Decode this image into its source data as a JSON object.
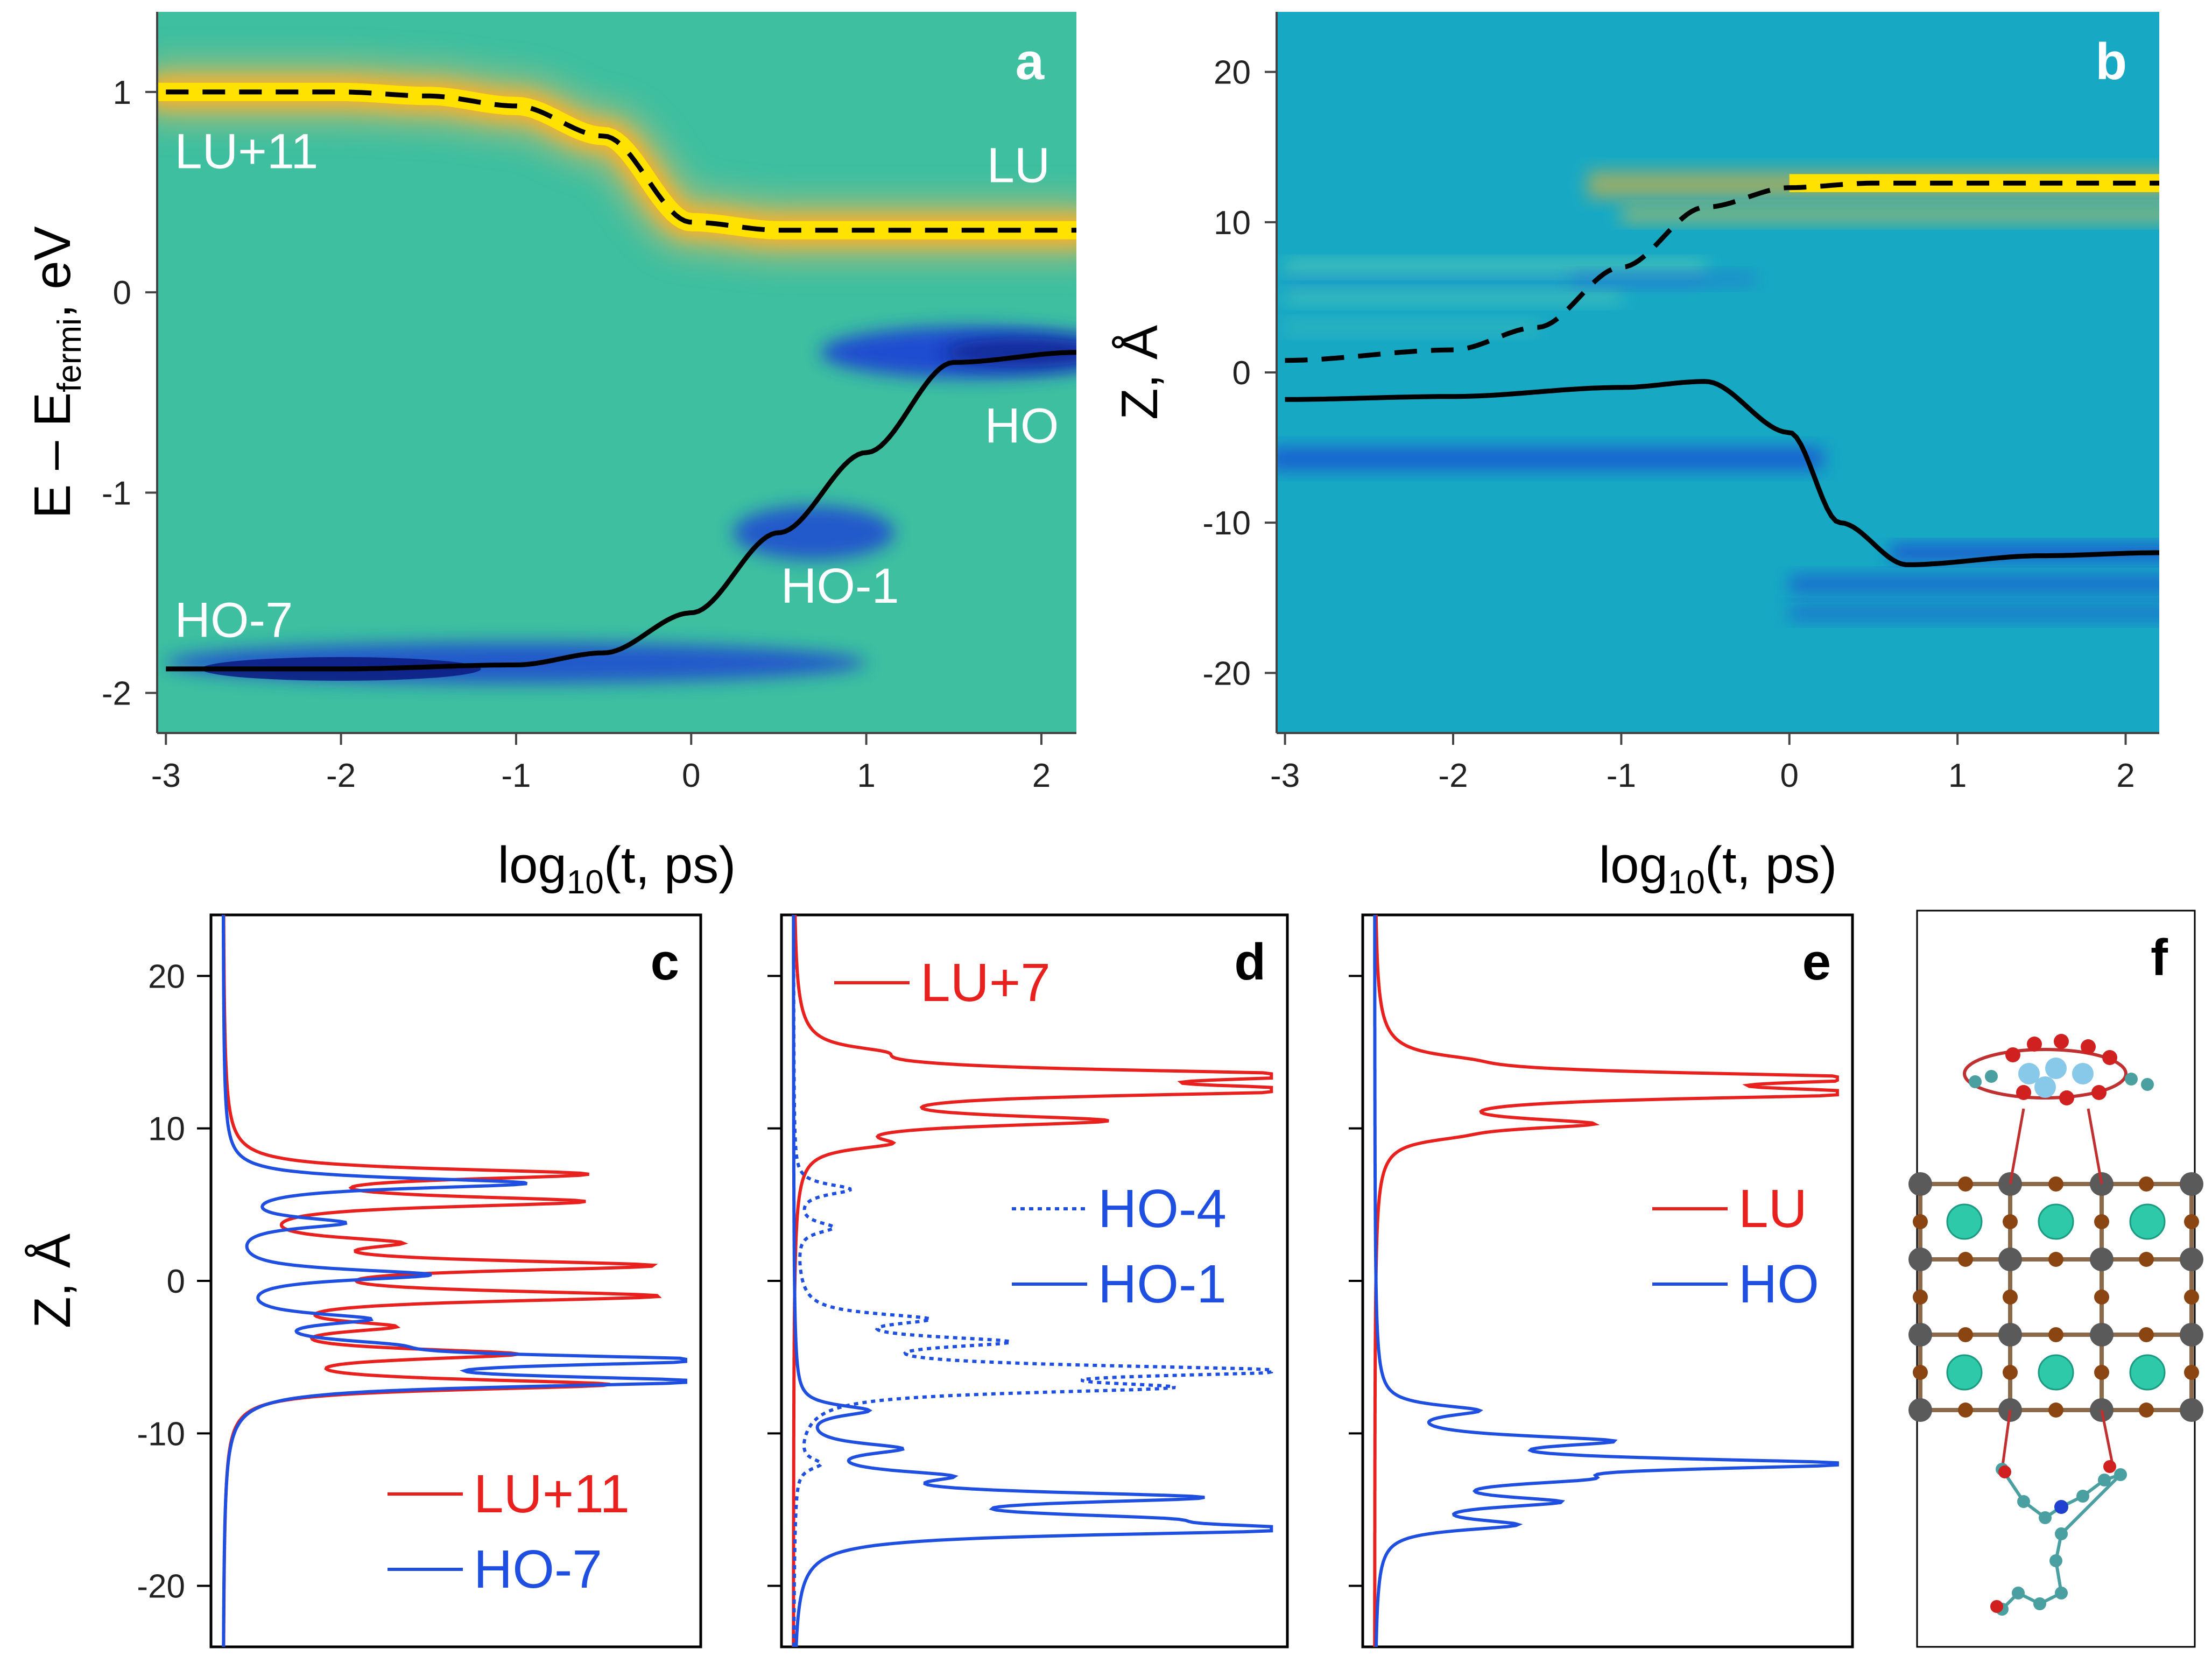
{
  "chart_data": [
    {
      "panel": "a",
      "type": "heatmap",
      "panel_label": "a",
      "xlabel": "log10(t, ps)",
      "ylabel": "E – Efermi, eV",
      "xlim": [
        -3.05,
        2.2
      ],
      "ylim": [
        -2.2,
        1.4
      ],
      "xticks": [
        "-3",
        "-2",
        "-1",
        "0",
        "1",
        "2"
      ],
      "yticks": [
        "-2",
        "-1",
        "0",
        "1"
      ],
      "annotations": [
        "LU+11",
        "LU",
        "HO",
        "HO-1",
        "HO-7"
      ],
      "series": [
        {
          "style": "dashed",
          "x": [
            -3.0,
            -2.0,
            -1.5,
            -1.0,
            -0.5,
            0.0,
            0.5,
            1.0,
            1.5,
            2.2
          ],
          "y": [
            1.0,
            1.0,
            0.98,
            0.93,
            0.78,
            0.35,
            0.31,
            0.31,
            0.31,
            0.31
          ]
        },
        {
          "style": "solid",
          "x": [
            -3.0,
            -2.0,
            -1.0,
            -0.5,
            0.0,
            0.5,
            1.0,
            1.5,
            2.2
          ],
          "y": [
            -1.88,
            -1.88,
            -1.86,
            -1.8,
            -1.6,
            -1.2,
            -0.8,
            -0.35,
            -0.3
          ]
        }
      ],
      "colors": {
        "background": "#3dbfa0",
        "hot": "#ffe200",
        "cold": "#1d3fd6"
      }
    },
    {
      "panel": "b",
      "type": "heatmap",
      "panel_label": "b",
      "xlabel": "log10(t, ps)",
      "ylabel": "Z, Å",
      "xlim": [
        -3.05,
        2.2
      ],
      "ylim": [
        -24,
        24
      ],
      "xticks": [
        "-3",
        "-2",
        "-1",
        "0",
        "1",
        "2"
      ],
      "yticks": [
        "-20",
        "-10",
        "0",
        "10",
        "20"
      ],
      "series": [
        {
          "style": "dashed",
          "x": [
            -3.0,
            -2.0,
            -1.5,
            -1.0,
            -0.5,
            0.0,
            0.5,
            2.2
          ],
          "y": [
            0.8,
            1.5,
            3.0,
            7.0,
            11.0,
            12.3,
            12.6,
            12.6
          ]
        },
        {
          "style": "solid",
          "x": [
            -3.0,
            -2.0,
            -1.0,
            -0.5,
            0.0,
            0.3,
            0.7,
            1.5,
            2.2
          ],
          "y": [
            -1.8,
            -1.6,
            -1.0,
            -0.6,
            -4.0,
            -10.0,
            -12.8,
            -12.2,
            -12.0
          ]
        }
      ],
      "colors": {
        "background": "#17a9c4",
        "hot": "#ffe200",
        "cold": "#1d3fd6"
      }
    },
    {
      "panel": "c",
      "type": "line",
      "panel_label": "c",
      "ylabel": "Z, Å",
      "ylim": [
        -24,
        24
      ],
      "yticks": [
        "-20",
        "-10",
        "0",
        "10",
        "20"
      ],
      "series": [
        {
          "name": "LU+11",
          "color": "#e8201e",
          "peaks": [
            [
              7.0,
              0.78
            ],
            [
              5.2,
              0.76
            ],
            [
              2.5,
              0.3
            ],
            [
              1.0,
              0.9
            ],
            [
              -1.0,
              0.92
            ],
            [
              -3.0,
              0.3
            ],
            [
              -4.8,
              0.6
            ],
            [
              -6.8,
              0.84
            ]
          ]
        },
        {
          "name": "HO-7",
          "color": "#1f4fe0",
          "peaks": [
            [
              6.4,
              0.68
            ],
            [
              3.8,
              0.25
            ],
            [
              0.4,
              0.45
            ],
            [
              -2.5,
              0.28
            ],
            [
              -4.2,
              0.2
            ],
            [
              -5.2,
              1.0
            ],
            [
              -6.6,
              1.0
            ]
          ]
        }
      ]
    },
    {
      "panel": "d",
      "type": "line",
      "panel_label": "d",
      "ylim": [
        -24,
        24
      ],
      "series": [
        {
          "name": "LU+7",
          "color": "#e8201e",
          "peaks": [
            [
              15.0,
              0.1
            ],
            [
              13.5,
              1.0
            ],
            [
              12.5,
              1.0
            ],
            [
              10.5,
              0.62
            ],
            [
              9.0,
              0.15
            ]
          ]
        },
        {
          "name": "HO-4",
          "color": "#1f4fe0",
          "style": "dotted",
          "peaks": [
            [
              6.0,
              0.12
            ],
            [
              3.5,
              0.08
            ],
            [
              -2.5,
              0.25
            ],
            [
              -4.0,
              0.4
            ],
            [
              -5.9,
              1.0
            ],
            [
              -7.0,
              0.7
            ],
            [
              -12.0,
              0.05
            ]
          ]
        },
        {
          "name": "HO-1",
          "color": "#1f4fe0",
          "peaks": [
            [
              -8.5,
              0.15
            ],
            [
              -11.0,
              0.2
            ],
            [
              -12.8,
              0.25
            ],
            [
              -14.2,
              0.8
            ],
            [
              -15.6,
              0.5
            ],
            [
              -16.3,
              0.98
            ]
          ]
        }
      ]
    },
    {
      "panel": "e",
      "type": "line",
      "panel_label": "e",
      "ylim": [
        -24,
        24
      ],
      "series": [
        {
          "name": "LU",
          "color": "#e8201e",
          "peaks": [
            [
              14.5,
              0.08
            ],
            [
              13.3,
              1.0
            ],
            [
              12.3,
              1.0
            ],
            [
              10.3,
              0.42
            ],
            [
              9.5,
              0.08
            ]
          ]
        },
        {
          "name": "HO",
          "color": "#1f4fe0",
          "peaks": [
            [
              -8.5,
              0.2
            ],
            [
              -10.5,
              0.45
            ],
            [
              -12.0,
              1.0
            ],
            [
              -13.0,
              0.3
            ],
            [
              -14.5,
              0.35
            ],
            [
              -16.0,
              0.28
            ]
          ]
        }
      ]
    }
  ],
  "panel_f": {
    "label": "f"
  }
}
